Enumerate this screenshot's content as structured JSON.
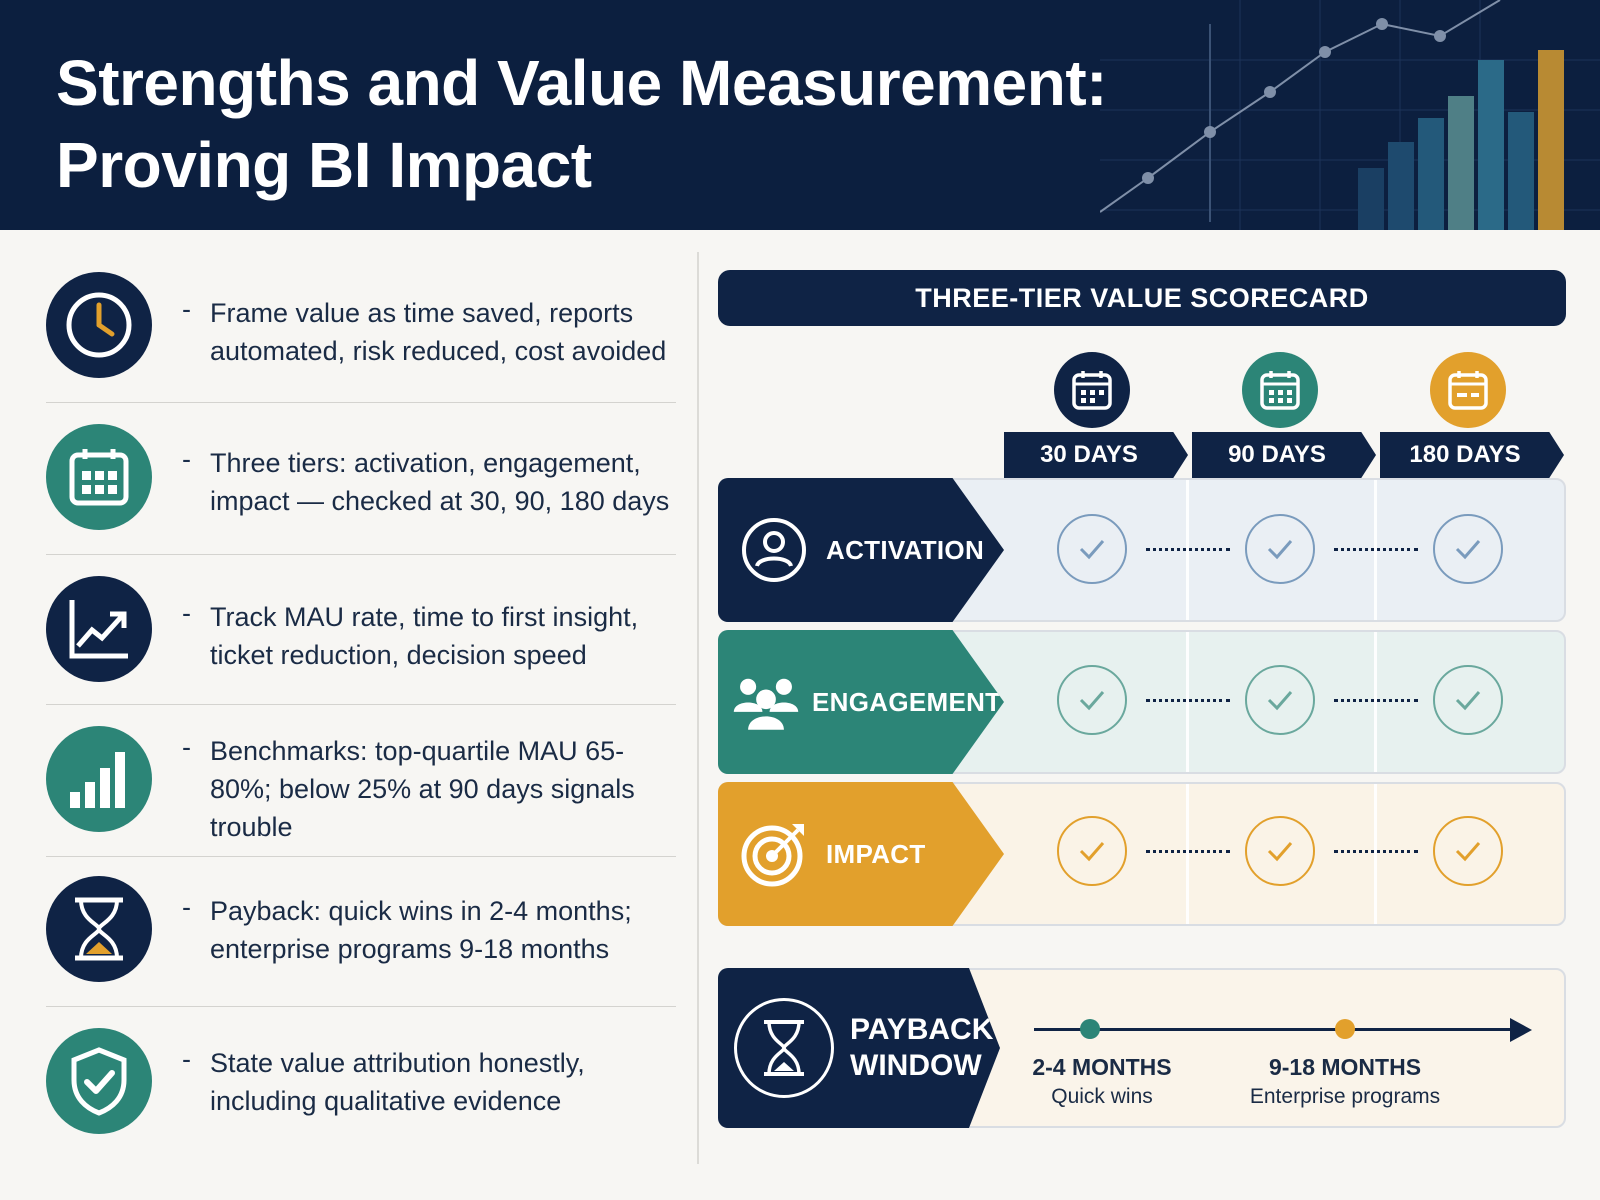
{
  "header": {
    "title_line1": "Strengths and Value Measurement:",
    "title_line2": "Proving BI Impact"
  },
  "bullets": [
    {
      "icon": "clock-icon",
      "text": "Frame value as time saved, reports automated, risk reduced, cost avoided"
    },
    {
      "icon": "calendar-grid-icon",
      "text": "Three tiers: activation, engagement, impact — checked at 30, 90, 180 days"
    },
    {
      "icon": "trend-chart-icon",
      "text": "Track MAU rate, time to first insight, ticket reduction, decision speed"
    },
    {
      "icon": "bar-chart-icon",
      "text": "Benchmarks: top-quartile MAU 65-80%; below 25% at 90 days signals trouble"
    },
    {
      "icon": "hourglass-icon",
      "text": "Payback: quick wins in 2-4 months; enterprise programs 9-18 months"
    },
    {
      "icon": "shield-check-icon",
      "text": "State value attribution honestly, including qualitative evidence"
    }
  ],
  "bullet_dash": "-",
  "scorecard": {
    "title": "THREE-TIER VALUE SCORECARD",
    "columns": [
      "30 DAYS",
      "90 DAYS",
      "180 DAYS"
    ],
    "rows": [
      {
        "label": "ACTIVATION",
        "icon": "user-icon"
      },
      {
        "label": "ENGAGEMENT",
        "icon": "group-icon"
      },
      {
        "label": "IMPACT",
        "icon": "target-icon"
      }
    ]
  },
  "payback": {
    "label_line1": "PAYBACK",
    "label_line2": "WINDOW",
    "milestones": [
      {
        "range": "2-4 MONTHS",
        "caption": "Quick wins"
      },
      {
        "range": "9-18 MONTHS",
        "caption": "Enterprise programs"
      }
    ]
  },
  "colors": {
    "navy": "#0f2345",
    "teal": "#2c8577",
    "gold": "#e2a02c"
  }
}
